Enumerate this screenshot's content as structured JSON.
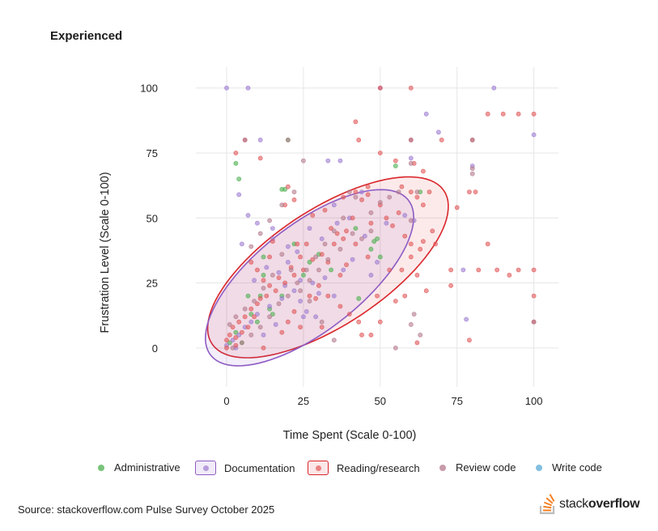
{
  "title": "Experienced",
  "source": "Source: stackoverflow.com Pulse Survey October 2025",
  "logo": {
    "prefix": "stack",
    "suffix": "overflow",
    "icon": "stackoverflow-logo-icon"
  },
  "colors": {
    "Administrative": "#4caf50",
    "Documentation": "#9c7bd1",
    "Reading/research": "#e15759",
    "Review code": "#b47a8c",
    "Write code": "#5aa9d6",
    "ellipse_doc": "#8e5bc4",
    "ellipse_read": "#d9262b"
  },
  "legend": [
    {
      "label": "Administrative",
      "style": "dot"
    },
    {
      "label": "Documentation",
      "style": "box"
    },
    {
      "label": "Reading/research",
      "style": "box"
    },
    {
      "label": "Review code",
      "style": "dot"
    },
    {
      "label": "Write code",
      "style": "dot"
    }
  ],
  "chart_data": {
    "type": "scatter",
    "xlabel": "Time Spent (Scale 0-100)",
    "ylabel": "Frustration Level (Scale 0-100)",
    "xlim": [
      -10,
      108
    ],
    "ylim": [
      -15,
      108
    ],
    "xticks": [
      0,
      25,
      50,
      75,
      100
    ],
    "yticks": [
      0,
      25,
      50,
      75,
      100
    ],
    "grid": true,
    "legend_position": "bottom",
    "ellipses": [
      {
        "series": "Documentation",
        "center": [
          27,
          27
        ],
        "rx": 44,
        "ry": 19,
        "angle": 45
      },
      {
        "series": "Reading/research",
        "center": [
          33,
          31
        ],
        "rx": 48,
        "ry": 21,
        "angle": 40
      }
    ],
    "series": [
      {
        "name": "Administrative",
        "points": [
          [
            3,
            71
          ],
          [
            4,
            65
          ],
          [
            20,
            80
          ],
          [
            19,
            61
          ],
          [
            48,
            41
          ],
          [
            42,
            46
          ],
          [
            47,
            38
          ],
          [
            12,
            35
          ],
          [
            11,
            20
          ],
          [
            7,
            20
          ],
          [
            18,
            20
          ],
          [
            25,
            28
          ],
          [
            43,
            19
          ],
          [
            10,
            10
          ],
          [
            14,
            15
          ],
          [
            1,
            2
          ],
          [
            3,
            6
          ],
          [
            18,
            61
          ],
          [
            22,
            40
          ],
          [
            34,
            30
          ],
          [
            15,
            13
          ],
          [
            5,
            2
          ],
          [
            27,
            33
          ],
          [
            30,
            36
          ],
          [
            49,
            42
          ],
          [
            12,
            28
          ],
          [
            8,
            13
          ],
          [
            55,
            70
          ],
          [
            63,
            60
          ],
          [
            50,
            35
          ]
        ]
      },
      {
        "name": "Documentation",
        "points": [
          [
            0,
            100
          ],
          [
            7,
            100
          ],
          [
            50,
            100
          ],
          [
            87,
            100
          ],
          [
            65,
            90
          ],
          [
            100,
            82
          ],
          [
            11,
            80
          ],
          [
            69,
            83
          ],
          [
            4,
            59
          ],
          [
            7,
            51
          ],
          [
            10,
            48
          ],
          [
            5,
            40
          ],
          [
            15,
            42
          ],
          [
            20,
            39
          ],
          [
            23,
            37
          ],
          [
            27,
            46
          ],
          [
            31,
            42
          ],
          [
            40,
            50
          ],
          [
            35,
            55
          ],
          [
            44,
            60
          ],
          [
            49,
            33
          ],
          [
            38,
            30
          ],
          [
            32,
            27
          ],
          [
            28,
            25
          ],
          [
            22,
            22
          ],
          [
            18,
            19
          ],
          [
            14,
            16
          ],
          [
            10,
            13
          ],
          [
            8,
            10
          ],
          [
            6,
            8
          ],
          [
            4,
            5
          ],
          [
            2,
            3
          ],
          [
            0,
            1
          ],
          [
            3,
            0
          ],
          [
            77,
            30
          ],
          [
            80,
            70
          ],
          [
            29,
            12
          ],
          [
            26,
            14
          ],
          [
            24,
            18
          ],
          [
            19,
            24
          ],
          [
            17,
            29
          ],
          [
            13,
            31
          ],
          [
            9,
            26
          ],
          [
            36,
            48
          ],
          [
            45,
            43
          ],
          [
            52,
            48
          ],
          [
            58,
            51
          ],
          [
            24,
            26
          ],
          [
            30,
            21
          ],
          [
            35,
            20
          ],
          [
            16,
            9
          ],
          [
            12,
            5
          ],
          [
            41,
            34
          ],
          [
            47,
            28
          ],
          [
            20,
            33
          ],
          [
            25,
            12
          ],
          [
            78,
            11
          ],
          [
            60,
            73
          ],
          [
            33,
            72
          ],
          [
            37,
            72
          ],
          [
            61,
            49
          ],
          [
            15,
            46
          ]
        ]
      },
      {
        "name": "Reading/research",
        "points": [
          [
            50,
            100
          ],
          [
            60,
            100
          ],
          [
            85,
            90
          ],
          [
            90,
            90
          ],
          [
            100,
            90
          ],
          [
            95,
            90
          ],
          [
            42,
            87
          ],
          [
            6,
            80
          ],
          [
            43,
            80
          ],
          [
            60,
            80
          ],
          [
            80,
            80
          ],
          [
            3,
            75
          ],
          [
            11,
            73
          ],
          [
            50,
            75
          ],
          [
            55,
            72
          ],
          [
            70,
            80
          ],
          [
            61,
            71
          ],
          [
            64,
            68
          ],
          [
            75,
            54
          ],
          [
            79,
            60
          ],
          [
            81,
            60
          ],
          [
            88,
            30
          ],
          [
            92,
            28
          ],
          [
            95,
            30
          ],
          [
            100,
            30
          ],
          [
            100,
            20
          ],
          [
            85,
            40
          ],
          [
            82,
            30
          ],
          [
            73,
            30
          ],
          [
            73,
            24
          ],
          [
            65,
            22
          ],
          [
            58,
            20
          ],
          [
            55,
            18
          ],
          [
            49,
            20
          ],
          [
            47,
            5
          ],
          [
            50,
            10
          ],
          [
            60,
            40
          ],
          [
            64,
            41
          ],
          [
            68,
            40
          ],
          [
            57,
            30
          ],
          [
            62,
            28
          ],
          [
            53,
            30
          ],
          [
            46,
            35
          ],
          [
            42,
            40
          ],
          [
            38,
            42
          ],
          [
            35,
            40
          ],
          [
            31,
            36
          ],
          [
            28,
            34
          ],
          [
            25,
            30
          ],
          [
            22,
            28
          ],
          [
            19,
            25
          ],
          [
            16,
            22
          ],
          [
            13,
            20
          ],
          [
            10,
            17
          ],
          [
            8,
            15
          ],
          [
            6,
            12
          ],
          [
            4,
            10
          ],
          [
            2,
            8
          ],
          [
            1,
            5
          ],
          [
            0,
            3
          ],
          [
            12,
            0
          ],
          [
            20,
            62
          ],
          [
            22,
            57
          ],
          [
            28,
            51
          ],
          [
            34,
            46
          ],
          [
            39,
            45
          ],
          [
            41,
            50
          ],
          [
            47,
            48
          ],
          [
            52,
            50
          ],
          [
            56,
            52
          ],
          [
            60,
            60
          ],
          [
            62,
            58
          ],
          [
            64,
            55
          ],
          [
            58,
            43
          ],
          [
            54,
            47
          ],
          [
            50,
            55
          ],
          [
            46,
            59
          ],
          [
            36,
            44
          ],
          [
            32,
            53
          ],
          [
            26,
            40
          ],
          [
            21,
            31
          ],
          [
            17,
            27
          ],
          [
            14,
            24
          ],
          [
            11,
            19
          ],
          [
            9,
            12
          ],
          [
            7,
            8
          ],
          [
            5,
            6
          ],
          [
            3,
            4
          ],
          [
            24,
            8
          ],
          [
            29,
            19
          ],
          [
            33,
            20
          ],
          [
            37,
            16
          ],
          [
            40,
            13
          ],
          [
            43,
            10
          ],
          [
            44,
            5
          ],
          [
            62,
            2
          ],
          [
            79,
            3
          ],
          [
            60,
            35
          ],
          [
            63,
            38
          ],
          [
            23,
            40
          ],
          [
            19,
            55
          ],
          [
            42,
            60
          ],
          [
            44,
            57
          ],
          [
            46,
            62
          ],
          [
            24,
            35
          ],
          [
            27,
            20
          ],
          [
            30,
            24
          ],
          [
            14,
            35
          ],
          [
            8,
            33
          ],
          [
            10,
            30
          ],
          [
            12,
            26
          ],
          [
            15,
            41
          ],
          [
            66,
            60
          ],
          [
            39,
            32
          ],
          [
            33,
            33
          ],
          [
            37,
            28
          ],
          [
            20,
            10
          ],
          [
            18,
            6
          ],
          [
            22,
            14
          ],
          [
            31,
            8
          ],
          [
            3,
            1
          ],
          [
            0,
            0
          ],
          [
            100,
            10
          ],
          [
            67,
            45
          ],
          [
            57,
            62
          ],
          [
            38,
            58
          ]
        ]
      },
      {
        "name": "Review code",
        "points": [
          [
            6,
            80
          ],
          [
            20,
            80
          ],
          [
            25,
            72
          ],
          [
            22,
            60
          ],
          [
            18,
            55
          ],
          [
            14,
            49
          ],
          [
            11,
            44
          ],
          [
            8,
            39
          ],
          [
            40,
            60
          ],
          [
            42,
            58
          ],
          [
            38,
            50
          ],
          [
            35,
            45
          ],
          [
            32,
            40
          ],
          [
            29,
            35
          ],
          [
            26,
            30
          ],
          [
            23,
            25
          ],
          [
            20,
            20
          ],
          [
            17,
            17
          ],
          [
            14,
            12
          ],
          [
            11,
            8
          ],
          [
            8,
            5
          ],
          [
            5,
            2
          ],
          [
            2,
            0
          ],
          [
            60,
            80
          ],
          [
            80,
            80
          ],
          [
            80,
            67
          ],
          [
            80,
            69
          ],
          [
            60,
            49
          ],
          [
            60,
            71
          ],
          [
            61,
            13
          ],
          [
            60,
            9
          ],
          [
            63,
            5
          ],
          [
            55,
            0
          ],
          [
            100,
            10
          ],
          [
            62,
            60
          ],
          [
            44,
            42
          ],
          [
            47,
            45
          ],
          [
            31,
            10
          ],
          [
            35,
            3
          ],
          [
            27,
            18
          ],
          [
            24,
            22
          ],
          [
            21,
            30
          ],
          [
            18,
            36
          ],
          [
            15,
            28
          ],
          [
            12,
            23
          ],
          [
            9,
            18
          ],
          [
            6,
            15
          ],
          [
            3,
            12
          ],
          [
            1,
            9
          ],
          [
            56,
            60
          ],
          [
            53,
            58
          ],
          [
            50,
            56
          ],
          [
            47,
            52
          ],
          [
            41,
            44
          ],
          [
            37,
            38
          ],
          [
            33,
            34
          ],
          [
            30,
            30
          ],
          [
            27,
            26
          ]
        ]
      },
      {
        "name": "Write code",
        "points": []
      }
    ]
  }
}
